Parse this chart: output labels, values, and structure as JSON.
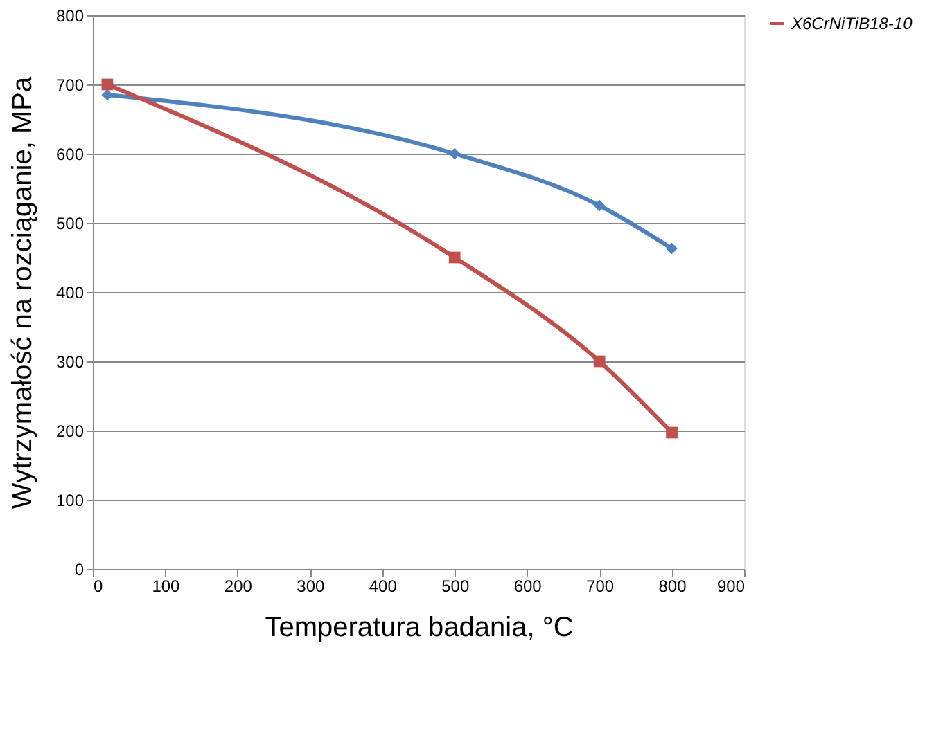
{
  "chart_data": {
    "type": "line",
    "xlabel": "Temperatura badania, °C",
    "ylabel": "Wytrzymałość na rozciąganie, MPa",
    "xlim": [
      0,
      900
    ],
    "xticks": [
      0,
      100,
      200,
      300,
      400,
      500,
      600,
      700,
      800,
      900
    ],
    "ylim": [
      0,
      800
    ],
    "yticks": [
      0,
      100,
      200,
      300,
      400,
      500,
      600,
      700,
      800
    ],
    "grid": "y",
    "legend": "right",
    "line_style": "solid",
    "series": [
      {
        "color": "#4f81bd",
        "marker": "diamond",
        "x": [
          20,
          500,
          700,
          800
        ],
        "values": [
          685,
          600,
          525,
          463
        ]
      },
      {
        "name": "X6CrNiTiB18-10",
        "color": "#c0504d",
        "marker": "square",
        "x": [
          20,
          500,
          700,
          800
        ],
        "values": [
          700,
          450,
          300,
          197
        ]
      }
    ]
  }
}
